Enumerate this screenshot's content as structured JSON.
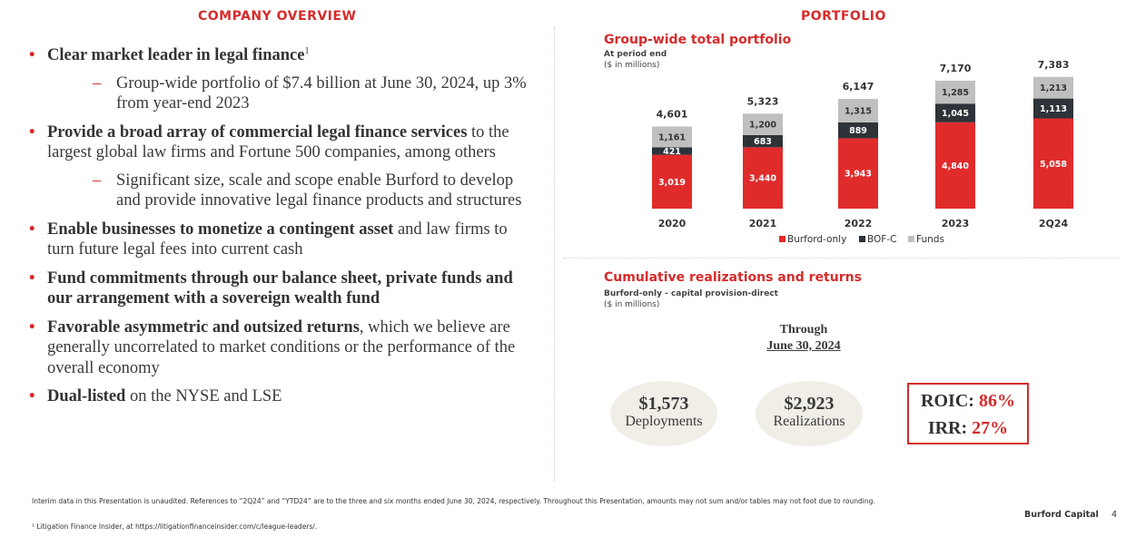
{
  "left": {
    "title": "COMPANY OVERVIEW",
    "bullets": [
      {
        "bold": "Clear market leader in legal finance",
        "footnote": "1",
        "rest": "",
        "sub": "Group-wide portfolio of $7.4 billion at June 30, 2024, up 3% from year-end 2023"
      },
      {
        "bold": "Provide a broad array of commercial legal finance services",
        "rest": " to the largest global law firms and Fortune 500 companies, among others",
        "sub": "Significant size, scale and scope enable Burford to develop and provide innovative legal finance products and structures"
      },
      {
        "bold": "Enable businesses to monetize a contingent asset",
        "rest": " and law firms to turn future legal fees into current cash"
      },
      {
        "bold": "Fund commitments through our balance sheet, private funds and our arrangement with a sovereign wealth fund",
        "rest": ""
      },
      {
        "bold": "Favorable asymmetric and outsized returns",
        "rest": ", which we believe are generally uncorrelated to market conditions or the performance of the overall economy"
      },
      {
        "bold": "Dual-listed",
        "rest": " on the NYSE and LSE"
      }
    ]
  },
  "right": {
    "title": "PORTFOLIO",
    "chart1": {
      "title": "Group-wide total portfolio",
      "sub1": "At period end",
      "sub2": "($ in millions)"
    },
    "chart2": {
      "title": "Cumulative realizations and returns",
      "sub1": "Burford-only - capital provision-direct",
      "sub2": "($ in millions)"
    },
    "through_line1": "Through",
    "through_line2": "June 30, 2024",
    "deployments_amount": "$1,573",
    "deployments_label": "Deployments",
    "realizations_amount": "$2,923",
    "realizations_label": "Realizations",
    "roic_label": "ROIC: ",
    "roic_value": "86%",
    "irr_label": "IRR: ",
    "irr_value": "27%"
  },
  "chart_data": {
    "type": "bar",
    "stacked": true,
    "title": "Group-wide total portfolio",
    "categories": [
      "2020",
      "2021",
      "2022",
      "2023",
      "2Q24"
    ],
    "series": [
      {
        "name": "Burford-only",
        "values": [
          3019,
          3440,
          3943,
          4840,
          5058
        ],
        "labels": [
          "3,019",
          "3,440",
          "3,943",
          "4,840",
          "5,058"
        ],
        "color": "#e02b2b"
      },
      {
        "name": "BOF-C",
        "values": [
          421,
          683,
          889,
          1045,
          1113
        ],
        "labels": [
          "421",
          "683",
          "889",
          "1,045",
          "1,113"
        ],
        "color": "#2d3338"
      },
      {
        "name": "Funds",
        "values": [
          1161,
          1200,
          1315,
          1285,
          1213
        ],
        "labels": [
          "1,161",
          "1,200",
          "1,315",
          "1,285",
          "1,213"
        ],
        "color": "#bfbfbf"
      }
    ],
    "totals": [
      "4,601",
      "5,323",
      "6,147",
      "7,170",
      "7,383"
    ],
    "legend_position": "bottom"
  },
  "footer": {
    "note1": "Interim data in this Presentation is unaudited. References to “2Q24” and “YTD24” are to the three and six months ended June 30, 2024, respectively. Throughout this Presentation, amounts may not sum and/or tables may not foot due to rounding.",
    "note2": "¹ Litigation Finance Insider, at https://litigationfinanceinsider.com/c/league-leaders/.",
    "brand": "Burford Capital",
    "page": "4"
  },
  "colors": {
    "accent": "#d62b2b"
  }
}
